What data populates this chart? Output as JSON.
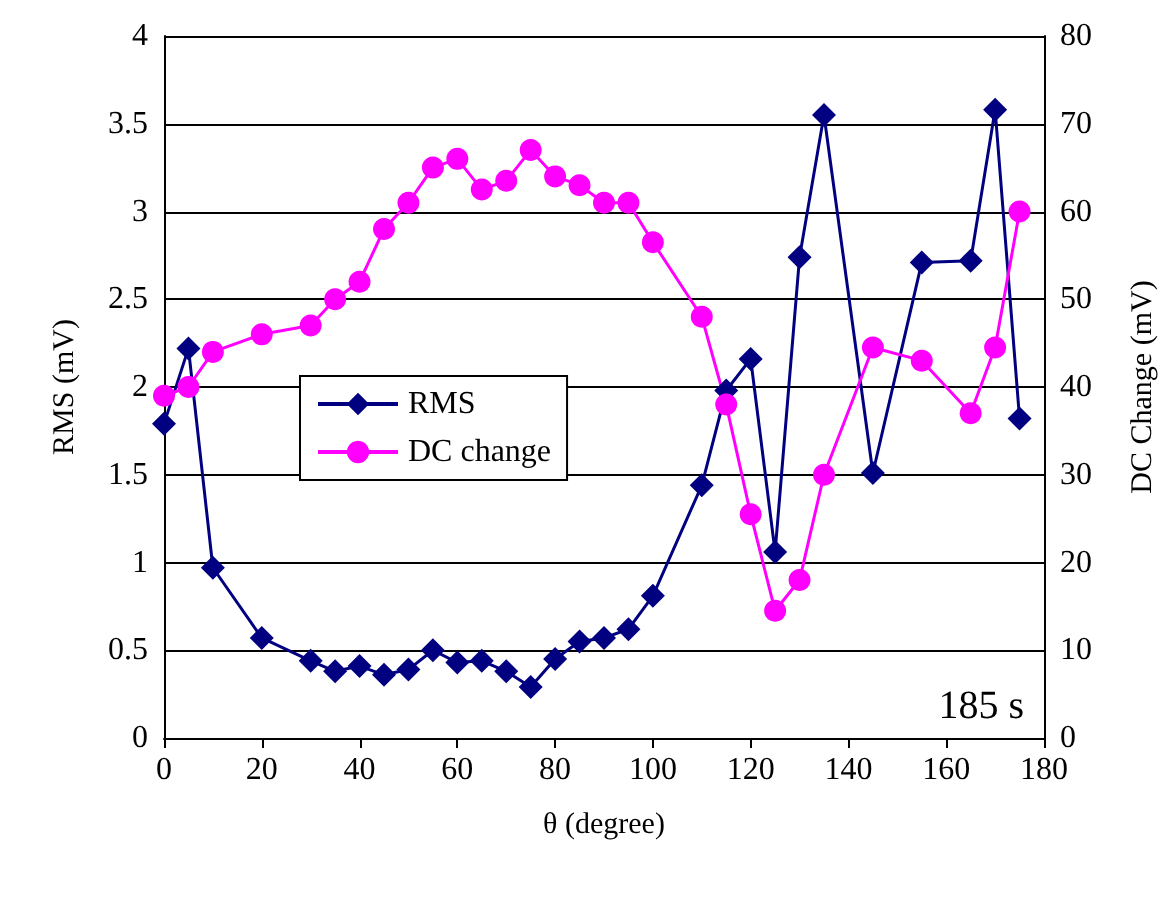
{
  "chart_data": {
    "type": "line",
    "xlabel": "θ (degree)",
    "ylabel": "RMS (mV)",
    "y2label": "DC Change (mV)",
    "annotations": [
      "185 s"
    ],
    "x": [
      0,
      5,
      10,
      20,
      30,
      35,
      40,
      45,
      50,
      55,
      60,
      65,
      70,
      75,
      80,
      85,
      90,
      95,
      100,
      110,
      115,
      120,
      125,
      130,
      135,
      145,
      155,
      165,
      170,
      175
    ],
    "series": [
      {
        "name": "RMS",
        "color": "#000080",
        "marker": "diamond",
        "values": [
          1.79,
          2.22,
          0.97,
          0.57,
          0.44,
          0.38,
          0.41,
          0.36,
          0.39,
          0.5,
          0.43,
          0.44,
          0.38,
          0.29,
          0.45,
          0.55,
          0.57,
          0.62,
          0.81,
          1.44,
          1.98,
          2.16,
          1.06,
          2.74,
          3.55,
          1.51,
          2.71,
          2.72,
          3.58,
          1.82
        ]
      },
      {
        "name": "DC change",
        "color": "#ff00ff",
        "marker": "circle",
        "axis": "y2",
        "values": [
          39,
          40,
          44,
          46,
          47,
          50,
          52,
          58,
          61,
          65,
          66,
          62.5,
          63.5,
          67,
          64,
          63,
          61,
          61,
          56.5,
          48,
          38,
          25.5,
          14.5,
          18,
          30,
          44.5,
          43,
          37,
          44.5,
          60
        ]
      }
    ],
    "xlim": [
      0,
      180
    ],
    "xticks": [
      0,
      20,
      40,
      60,
      80,
      100,
      120,
      140,
      160,
      180
    ],
    "ylim": [
      0,
      4
    ],
    "yticks": [
      0,
      0.5,
      1,
      1.5,
      2,
      2.5,
      3,
      3.5,
      4
    ],
    "y2lim": [
      0,
      80
    ],
    "y2ticks": [
      0,
      10,
      20,
      30,
      40,
      50,
      60,
      70,
      80
    ],
    "grid": "y",
    "legend": "left",
    "line_style": "solid"
  }
}
